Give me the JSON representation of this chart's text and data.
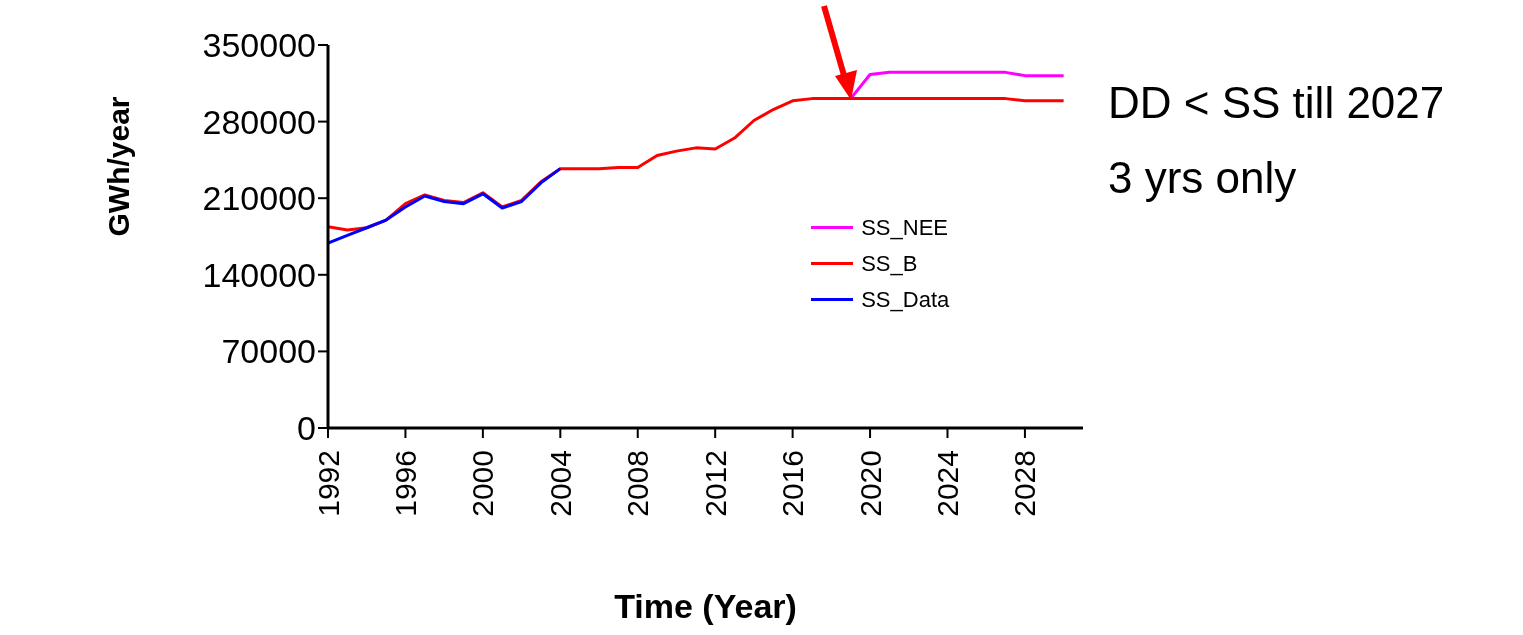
{
  "chart_data": {
    "type": "line",
    "xlabel": "Time (Year)",
    "ylabel": "GWh/year",
    "xlim": [
      1992,
      2031
    ],
    "xticks": [
      1992,
      1996,
      2000,
      2004,
      2008,
      2012,
      2016,
      2020,
      2024,
      2028
    ],
    "ylim": [
      0,
      350000
    ],
    "yticks": [
      0,
      70000,
      140000,
      210000,
      280000,
      350000
    ],
    "legend": "right",
    "grid": false,
    "marker": "none",
    "line_style": "solid",
    "annotations": [
      "DD < SS till 2027",
      "3 yrs only"
    ],
    "series": [
      {
        "name": "SS_NEE",
        "color": "#ff00ff",
        "x": [
          2019,
          2020,
          2021,
          2022,
          2023,
          2024,
          2025,
          2026,
          2027,
          2028,
          2029,
          2030
        ],
        "values": [
          301000,
          323000,
          325000,
          325000,
          325000,
          325000,
          325000,
          325000,
          325000,
          322000,
          322000,
          322000
        ]
      },
      {
        "name": "SS_B",
        "color": "#ff0000",
        "x": [
          1992,
          1993,
          1994,
          1995,
          1996,
          1997,
          1998,
          1999,
          2000,
          2001,
          2002,
          2003,
          2004,
          2005,
          2006,
          2007,
          2008,
          2009,
          2010,
          2011,
          2012,
          2013,
          2014,
          2015,
          2016,
          2017,
          2018,
          2019,
          2020,
          2021,
          2022,
          2023,
          2024,
          2025,
          2026,
          2027,
          2028,
          2029,
          2030
        ],
        "values": [
          184000,
          181000,
          183000,
          190000,
          205000,
          213000,
          208000,
          206000,
          215000,
          202000,
          208000,
          225000,
          237000,
          237000,
          237000,
          238000,
          238000,
          249000,
          253000,
          256000,
          255000,
          265000,
          281000,
          291000,
          299000,
          301000,
          301000,
          301000,
          301000,
          301000,
          301000,
          301000,
          301000,
          301000,
          301000,
          301000,
          299000,
          299000,
          299000
        ]
      },
      {
        "name": "SS_Data",
        "color": "#0000ff",
        "x": [
          1992,
          1993,
          1994,
          1995,
          1996,
          1997,
          1998,
          1999,
          2000,
          2001,
          2002,
          2003,
          2004
        ],
        "values": [
          169000,
          176000,
          183000,
          190000,
          202000,
          212000,
          207000,
          205000,
          214000,
          201000,
          207000,
          224000,
          237000
        ]
      }
    ]
  }
}
